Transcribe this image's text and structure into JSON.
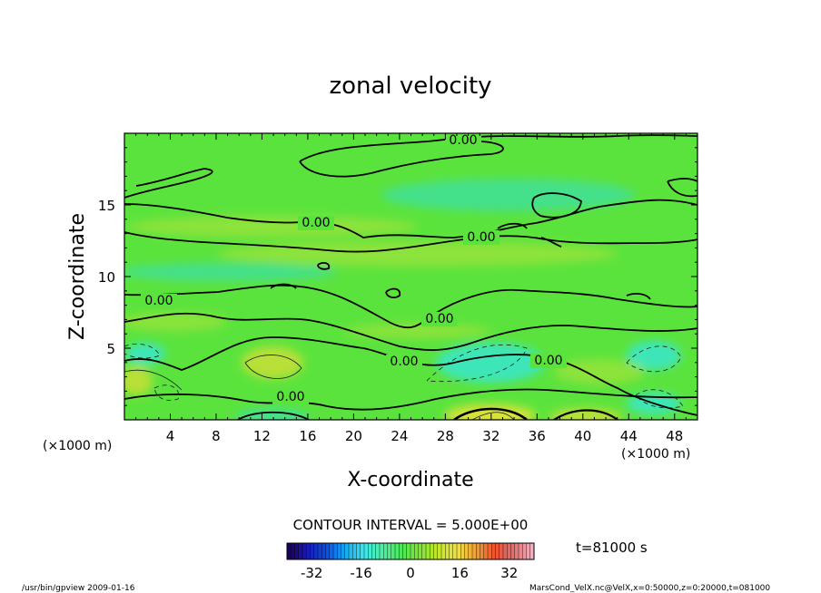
{
  "chart_data": {
    "type": "heatmap",
    "title": "zonal velocity",
    "xlabel": "X-coordinate",
    "ylabel": "Z-coordinate",
    "x_unit_left": "(×1000 m)",
    "x_unit_right": "(×1000 m)",
    "xlim": [
      0,
      50
    ],
    "ylim": [
      0,
      20
    ],
    "x_ticks": [
      4,
      8,
      12,
      16,
      20,
      24,
      28,
      32,
      36,
      40,
      44,
      48
    ],
    "y_ticks": [
      5,
      10,
      15
    ],
    "contour_interval_text": "CONTOUR INTERVAL = 5.000E+00",
    "contour_label": "0.00",
    "time_label": "t=81000 s",
    "colorbar": {
      "range": [
        -40,
        40
      ],
      "ticks": [
        -32,
        -16,
        0,
        16,
        32
      ],
      "colors": [
        "#1a0060",
        "#1a1ab0",
        "#0a4ee6",
        "#16a8f0",
        "#3ce6ea",
        "#4cf0a0",
        "#4ee65a",
        "#7fe636",
        "#c6e628",
        "#eee048",
        "#f2a030",
        "#f05030",
        "#e07070",
        "#f0b0c0"
      ]
    },
    "field_colors": {
      "background": "#5be33d",
      "weak_positive": "#8ce33a",
      "positive": "#b8e038",
      "strong_positive": "#d8e238",
      "weak_negative": "#45e08a",
      "negative": "#3ee6b8"
    },
    "footer_left": "/usr/bin/gpview   2009-01-16",
    "footer_right": "MarsCond_VelX.nc@VelX,x=0:50000,z=0:20000,t=081000"
  }
}
